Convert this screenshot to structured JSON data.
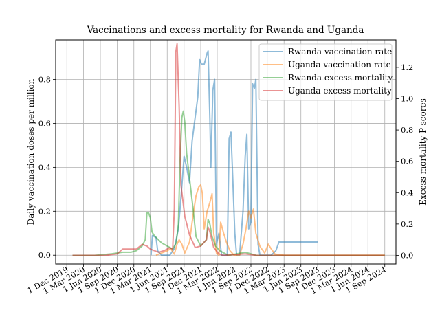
{
  "chart_data": {
    "type": "line",
    "title": "Vaccinations and excess mortality for Rwanda and Uganda",
    "ylabel_left": "Daily vaccination doses per million",
    "ylabel_right": "Excess mortality P-scores",
    "grid": true,
    "legend_position": "top-right",
    "x_ticks": [
      "1 Dec 2019",
      "1 Mar 2020",
      "1 Jun 2020",
      "1 Sep 2020",
      "1 Dec 2020",
      "1 Mar 2021",
      "1 Jun 2021",
      "1 Sep 2021",
      "1 Dec 2021",
      "1 Mar 2022",
      "1 Jun 2022",
      "1 Sep 2022",
      "1 Dec 2022",
      "1 Mar 2023",
      "1 Jun 2023",
      "1 Sep 2023",
      "1 Dec 2023",
      "1 Mar 2024",
      "1 Jun 2024",
      "1 Sep 2024"
    ],
    "x_range": [
      "2019-10-01",
      "2024-11-01"
    ],
    "y_left": {
      "range": [
        -0.04,
        0.98
      ],
      "ticks": [
        "0.0",
        "0.2",
        "0.4",
        "0.6",
        "0.8"
      ],
      "tick_values": [
        0,
        0.2,
        0.4,
        0.6,
        0.8
      ]
    },
    "y_right": {
      "range": [
        -0.055,
        1.375
      ],
      "ticks": [
        "0.0",
        "0.2",
        "0.4",
        "0.6",
        "0.8",
        "1.0",
        "1.2"
      ],
      "tick_values": [
        0,
        0.2,
        0.4,
        0.6,
        0.8,
        1.0,
        1.2
      ]
    },
    "series": [
      {
        "name": "Rwanda vaccination rate",
        "axis": "left",
        "color": "#1f77b4",
        "points": [
          [
            "2021-03-05",
            0.0
          ],
          [
            "2021-03-12",
            0.09
          ],
          [
            "2021-04-01",
            0.08
          ],
          [
            "2021-04-10",
            0.02
          ],
          [
            "2021-05-01",
            0.0
          ],
          [
            "2021-06-15",
            0.0
          ],
          [
            "2021-07-10",
            0.03
          ],
          [
            "2021-08-01",
            0.12
          ],
          [
            "2021-08-15",
            0.26
          ],
          [
            "2021-09-01",
            0.45
          ],
          [
            "2021-09-15",
            0.4
          ],
          [
            "2021-10-01",
            0.33
          ],
          [
            "2021-10-15",
            0.52
          ],
          [
            "2021-11-01",
            0.63
          ],
          [
            "2021-11-15",
            0.72
          ],
          [
            "2021-11-25",
            0.89
          ],
          [
            "2021-12-05",
            0.87
          ],
          [
            "2021-12-20",
            0.87
          ],
          [
            "2022-01-05",
            0.92
          ],
          [
            "2022-01-10",
            0.93
          ],
          [
            "2022-01-20",
            0.62
          ],
          [
            "2022-01-25",
            0.4
          ],
          [
            "2022-02-05",
            0.75
          ],
          [
            "2022-02-15",
            0.8
          ],
          [
            "2022-02-25",
            0.05
          ],
          [
            "2022-03-10",
            0.1
          ],
          [
            "2022-03-25",
            0.0
          ],
          [
            "2022-04-25",
            0.0
          ],
          [
            "2022-05-05",
            0.53
          ],
          [
            "2022-05-15",
            0.56
          ],
          [
            "2022-05-25",
            0.35
          ],
          [
            "2022-06-05",
            0.1
          ],
          [
            "2022-06-15",
            0.0
          ],
          [
            "2022-07-01",
            0.0
          ],
          [
            "2022-07-20",
            0.2
          ],
          [
            "2022-08-01",
            0.45
          ],
          [
            "2022-08-10",
            0.55
          ],
          [
            "2022-08-20",
            0.12
          ],
          [
            "2022-09-01",
            0.15
          ],
          [
            "2022-09-10",
            0.78
          ],
          [
            "2022-09-20",
            0.76
          ],
          [
            "2022-09-28",
            0.8
          ],
          [
            "2022-10-10",
            0.05
          ],
          [
            "2022-10-20",
            0.0
          ],
          [
            "2022-11-15",
            0.0
          ],
          [
            "2022-12-20",
            0.0
          ],
          [
            "2023-01-15",
            0.02
          ],
          [
            "2023-02-01",
            0.06
          ],
          [
            "2023-09-01",
            0.06
          ]
        ]
      },
      {
        "name": "Uganda vaccination rate",
        "axis": "left",
        "color": "#ff7f0e",
        "points": [
          [
            "2021-04-01",
            0.0
          ],
          [
            "2021-06-01",
            0.02
          ],
          [
            "2021-06-20",
            0.03
          ],
          [
            "2021-07-10",
            0.005
          ],
          [
            "2021-07-25",
            0.05
          ],
          [
            "2021-08-05",
            0.07
          ],
          [
            "2021-08-20",
            0.05
          ],
          [
            "2021-09-05",
            0.01
          ],
          [
            "2021-10-01",
            0.06
          ],
          [
            "2021-10-20",
            0.18
          ],
          [
            "2021-11-05",
            0.27
          ],
          [
            "2021-11-20",
            0.31
          ],
          [
            "2021-12-01",
            0.32
          ],
          [
            "2021-12-10",
            0.28
          ],
          [
            "2021-12-20",
            0.12
          ],
          [
            "2022-01-05",
            0.2
          ],
          [
            "2022-01-20",
            0.24
          ],
          [
            "2022-02-01",
            0.28
          ],
          [
            "2022-02-10",
            0.1
          ],
          [
            "2022-02-25",
            0.01
          ],
          [
            "2022-03-10",
            0.0
          ],
          [
            "2022-03-20",
            0.15
          ],
          [
            "2022-04-05",
            0.1
          ],
          [
            "2022-04-20",
            0.06
          ],
          [
            "2022-05-10",
            0.02
          ],
          [
            "2022-06-01",
            0.0
          ],
          [
            "2022-07-01",
            0.0
          ],
          [
            "2022-07-20",
            0.05
          ],
          [
            "2022-08-05",
            0.12
          ],
          [
            "2022-08-20",
            0.2
          ],
          [
            "2022-09-01",
            0.17
          ],
          [
            "2022-09-15",
            0.21
          ],
          [
            "2022-09-28",
            0.1
          ],
          [
            "2022-10-20",
            0.04
          ],
          [
            "2022-11-15",
            0.01
          ],
          [
            "2022-12-05",
            0.05
          ],
          [
            "2022-12-20",
            0.03
          ],
          [
            "2023-01-10",
            0.005
          ],
          [
            "2023-03-01",
            0.0
          ],
          [
            "2024-09-01",
            0.0
          ]
        ]
      },
      {
        "name": "Rwanda excess mortality",
        "axis": "right",
        "color": "#2ca02c",
        "points": [
          [
            "2020-01-01",
            0.0
          ],
          [
            "2020-05-01",
            0.0
          ],
          [
            "2020-08-01",
            0.01
          ],
          [
            "2020-10-01",
            0.02
          ],
          [
            "2020-11-15",
            0.02
          ],
          [
            "2020-12-15",
            0.03
          ],
          [
            "2021-01-15",
            0.06
          ],
          [
            "2021-02-01",
            0.1
          ],
          [
            "2021-02-10",
            0.27
          ],
          [
            "2021-02-20",
            0.27
          ],
          [
            "2021-03-01",
            0.24
          ],
          [
            "2021-03-10",
            0.15
          ],
          [
            "2021-03-20",
            0.13
          ],
          [
            "2021-04-05",
            0.11
          ],
          [
            "2021-05-01",
            0.08
          ],
          [
            "2021-06-01",
            0.06
          ],
          [
            "2021-07-01",
            0.04
          ],
          [
            "2021-07-20",
            0.08
          ],
          [
            "2021-08-01",
            0.2
          ],
          [
            "2021-08-10",
            0.6
          ],
          [
            "2021-08-20",
            0.88
          ],
          [
            "2021-08-28",
            0.92
          ],
          [
            "2021-09-05",
            0.85
          ],
          [
            "2021-09-15",
            0.65
          ],
          [
            "2021-09-25",
            0.55
          ],
          [
            "2021-10-05",
            0.45
          ],
          [
            "2021-10-20",
            0.3
          ],
          [
            "2021-11-05",
            0.12
          ],
          [
            "2021-12-01",
            0.06
          ],
          [
            "2022-01-01",
            0.1
          ],
          [
            "2022-01-10",
            0.23
          ],
          [
            "2022-01-20",
            0.2
          ],
          [
            "2022-02-01",
            0.12
          ],
          [
            "2022-02-20",
            0.06
          ],
          [
            "2022-03-15",
            0.03
          ],
          [
            "2022-05-01",
            0.0
          ],
          [
            "2022-08-01",
            0.02
          ],
          [
            "2022-10-01",
            0.0
          ],
          [
            "2024-09-01",
            0.0
          ]
        ]
      },
      {
        "name": "Uganda excess mortality",
        "axis": "right",
        "color": "#d62728",
        "points": [
          [
            "2020-01-01",
            0.0
          ],
          [
            "2020-04-01",
            0.0
          ],
          [
            "2020-07-01",
            0.0
          ],
          [
            "2020-09-01",
            0.01
          ],
          [
            "2020-10-01",
            0.04
          ],
          [
            "2020-11-15",
            0.04
          ],
          [
            "2020-12-15",
            0.04
          ],
          [
            "2021-01-15",
            0.07
          ],
          [
            "2021-02-10",
            0.06
          ],
          [
            "2021-03-01",
            0.04
          ],
          [
            "2021-04-15",
            0.02
          ],
          [
            "2021-05-15",
            0.03
          ],
          [
            "2021-06-15",
            0.05
          ],
          [
            "2021-07-01",
            0.04
          ],
          [
            "2021-07-10",
            0.3
          ],
          [
            "2021-07-18",
            1.3
          ],
          [
            "2021-07-25",
            1.35
          ],
          [
            "2021-08-05",
            0.95
          ],
          [
            "2021-08-15",
            0.45
          ],
          [
            "2021-09-05",
            0.25
          ],
          [
            "2021-10-01",
            0.13
          ],
          [
            "2021-11-01",
            0.05
          ],
          [
            "2021-12-01",
            0.06
          ],
          [
            "2022-01-01",
            0.1
          ],
          [
            "2022-01-10",
            0.18
          ],
          [
            "2022-01-20",
            0.15
          ],
          [
            "2022-02-10",
            0.05
          ],
          [
            "2022-03-10",
            0.01
          ],
          [
            "2022-04-01",
            0.0
          ],
          [
            "2022-08-01",
            0.01
          ],
          [
            "2022-10-01",
            0.0
          ],
          [
            "2024-09-01",
            0.0
          ]
        ]
      }
    ]
  }
}
